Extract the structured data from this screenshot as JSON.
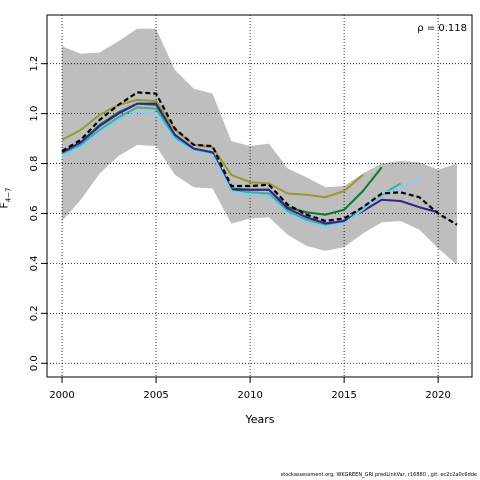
{
  "chart_data": {
    "type": "line",
    "xlabel": "Years",
    "ylabel_main": "F",
    "ylabel_sub": "4−7",
    "annotation": "ρ = 0.118",
    "xlim": [
      1999.2,
      2021.8
    ],
    "ylim": [
      -0.055,
      1.395
    ],
    "x_ticks": [
      2000,
      2005,
      2010,
      2015,
      2020
    ],
    "y_ticks": [
      0.0,
      0.2,
      0.4,
      0.6,
      0.8,
      1.0,
      1.2
    ],
    "grid": true,
    "band": {
      "x": [
        2000,
        2001,
        2002,
        2003,
        2004,
        2005,
        2006,
        2007,
        2008,
        2009,
        2010,
        2011,
        2012,
        2013,
        2014,
        2015,
        2016,
        2017,
        2018,
        2019,
        2020,
        2021
      ],
      "upper": [
        1.27,
        1.24,
        1.245,
        1.29,
        1.34,
        1.34,
        1.175,
        1.1,
        1.08,
        0.89,
        0.87,
        0.88,
        0.78,
        0.745,
        0.705,
        0.71,
        0.76,
        0.8,
        0.81,
        0.805,
        0.775,
        0.8
      ],
      "lower": [
        0.57,
        0.655,
        0.76,
        0.83,
        0.875,
        0.87,
        0.755,
        0.705,
        0.7,
        0.56,
        0.58,
        0.585,
        0.515,
        0.47,
        0.45,
        0.465,
        0.52,
        0.565,
        0.57,
        0.535,
        0.46,
        0.395
      ],
      "color": "#bebebe"
    },
    "series": [
      {
        "color": "#999933",
        "dash": false,
        "x": [
          2000,
          2001,
          2002,
          2003,
          2004,
          2005,
          2006,
          2007,
          2008,
          2009,
          2010,
          2011,
          2012,
          2013,
          2014,
          2015,
          2016
        ],
        "y": [
          0.895,
          0.935,
          0.995,
          1.035,
          1.055,
          1.05,
          0.935,
          0.875,
          0.865,
          0.755,
          0.725,
          0.72,
          0.68,
          0.675,
          0.665,
          0.69,
          0.755
        ]
      },
      {
        "color": "#117733",
        "dash": false,
        "x": [
          2000,
          2001,
          2002,
          2003,
          2004,
          2005,
          2006,
          2007,
          2008,
          2009,
          2010,
          2011,
          2012,
          2013,
          2014,
          2015,
          2016,
          2017
        ],
        "y": [
          0.845,
          0.885,
          0.955,
          1.005,
          1.04,
          1.035,
          0.915,
          0.86,
          0.845,
          0.7,
          0.695,
          0.695,
          0.625,
          0.605,
          0.595,
          0.615,
          0.69,
          0.785
        ]
      },
      {
        "color": "#44AA99",
        "dash": false,
        "x": [
          2000,
          2001,
          2002,
          2003,
          2004,
          2005,
          2006,
          2007,
          2008,
          2009,
          2010,
          2011,
          2012,
          2013,
          2014,
          2015,
          2016,
          2017,
          2018
        ],
        "y": [
          0.84,
          0.875,
          0.935,
          0.985,
          1.025,
          1.02,
          0.905,
          0.855,
          0.84,
          0.69,
          0.685,
          0.68,
          0.61,
          0.575,
          0.555,
          0.57,
          0.62,
          0.675,
          0.72
        ]
      },
      {
        "color": "#332288",
        "dash": false,
        "x": [
          2000,
          2001,
          2002,
          2003,
          2004,
          2005,
          2006,
          2007,
          2008,
          2009,
          2010,
          2011,
          2012,
          2013,
          2014,
          2015,
          2016,
          2017,
          2018,
          2019,
          2020
        ],
        "y": [
          0.845,
          0.885,
          0.95,
          1.0,
          1.04,
          1.04,
          0.915,
          0.86,
          0.845,
          0.695,
          0.695,
          0.695,
          0.62,
          0.585,
          0.56,
          0.57,
          0.61,
          0.655,
          0.65,
          0.625,
          0.605
        ]
      },
      {
        "color": "#88CCEE",
        "dash": false,
        "x": [
          2000,
          2001,
          2002,
          2003,
          2004,
          2005,
          2006,
          2007,
          2008,
          2009,
          2010,
          2011,
          2012,
          2013,
          2014,
          2015,
          2016,
          2017,
          2018,
          2019
        ],
        "y": [
          0.825,
          0.865,
          0.925,
          0.975,
          1.005,
          1.0,
          0.895,
          0.85,
          0.835,
          0.69,
          0.675,
          0.67,
          0.6,
          0.565,
          0.545,
          0.56,
          0.615,
          0.68,
          0.7,
          0.745
        ]
      },
      {
        "color": "#000000",
        "dash": true,
        "x": [
          2000,
          2001,
          2002,
          2003,
          2004,
          2005,
          2006,
          2007,
          2008,
          2009,
          2010,
          2011,
          2012,
          2013,
          2014,
          2015,
          2016,
          2017,
          2018,
          2019,
          2020,
          2021
        ],
        "y": [
          0.85,
          0.895,
          0.975,
          1.035,
          1.085,
          1.08,
          0.94,
          0.875,
          0.87,
          0.71,
          0.71,
          0.715,
          0.635,
          0.595,
          0.57,
          0.58,
          0.625,
          0.68,
          0.685,
          0.665,
          0.6,
          0.555
        ]
      }
    ]
  },
  "footer": "stockassessment.org, WKGREEN_GRI predLinkVar, r16880 , git: ec2c2a0c6dde"
}
